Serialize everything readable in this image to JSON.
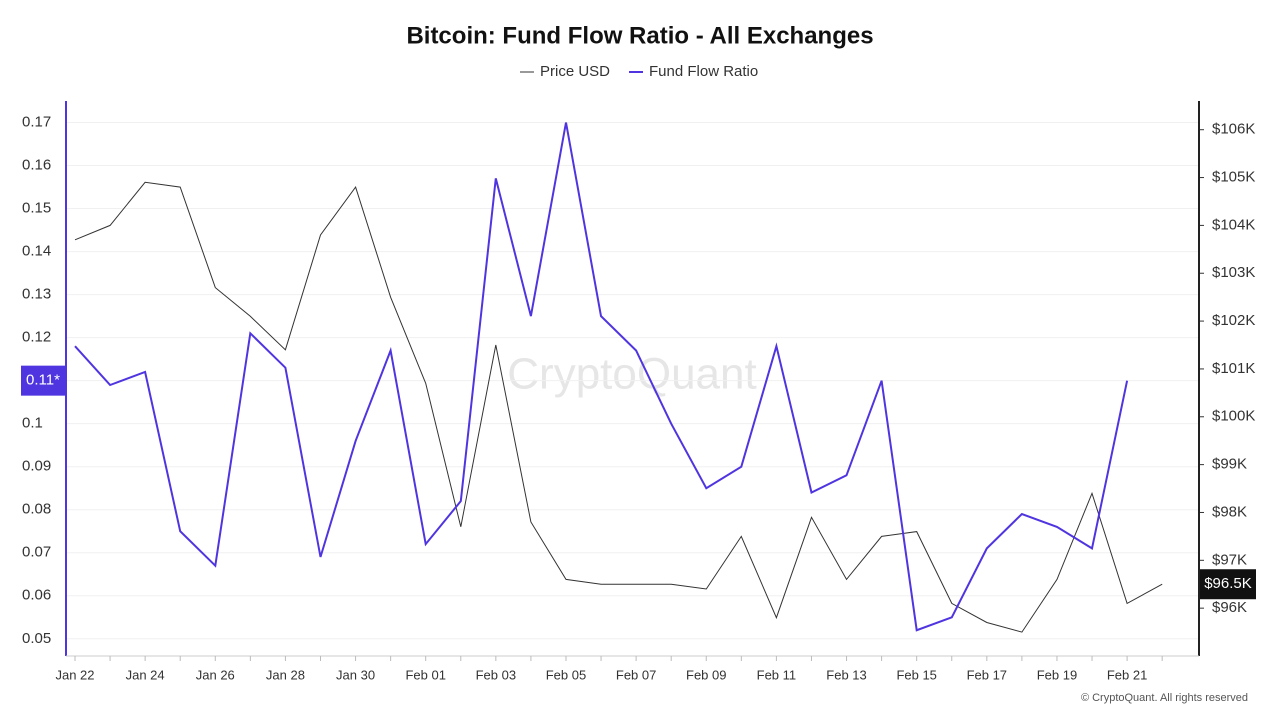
{
  "chart_data": {
    "type": "line",
    "title": "Bitcoin: Fund Flow Ratio - All Exchanges",
    "watermark": "CryptoQuant",
    "credit": "© CryptoQuant. All rights reserved",
    "categories": [
      "Jan 22",
      null,
      "Jan 24",
      null,
      "Jan 26",
      null,
      "Jan 28",
      null,
      "Jan 30",
      null,
      "Feb 01",
      null,
      "Feb 03",
      null,
      "Feb 05",
      null,
      "Feb 07",
      null,
      "Feb 09",
      null,
      "Feb 11",
      null,
      "Feb 13",
      null,
      "Feb 15",
      null,
      "Feb 17",
      null,
      "Feb 19",
      null,
      "Feb 21",
      null
    ],
    "series": [
      {
        "name": "Price USD",
        "color": "#333333",
        "axis": "y2",
        "values": [
          103700,
          104000,
          104900,
          104800,
          102700,
          102100,
          101400,
          103800,
          104800,
          102500,
          100700,
          97700,
          101500,
          97800,
          96600,
          96500,
          96500,
          96500,
          96400,
          97500,
          95800,
          97900,
          96600,
          97500,
          97600,
          96100,
          95700,
          95500,
          96600,
          98400,
          96100,
          96500
        ]
      },
      {
        "name": "Fund Flow Ratio",
        "color": "#4f35e0",
        "values": [
          0.118,
          0.109,
          0.112,
          0.075,
          0.067,
          0.121,
          0.113,
          0.069,
          0.096,
          0.117,
          0.072,
          0.082,
          0.157,
          0.125,
          0.17,
          0.125,
          0.117,
          0.1,
          0.085,
          0.09,
          0.118,
          0.084,
          0.088,
          0.11,
          0.052,
          0.055,
          0.071,
          0.079,
          0.076,
          0.071,
          0.11,
          null
        ]
      }
    ],
    "ylim": [
      0.046,
      0.175
    ],
    "yticks": [
      0.05,
      0.06,
      0.07,
      0.08,
      0.09,
      0.1,
      0.11,
      0.12,
      0.13,
      0.14,
      0.15,
      0.16,
      0.17
    ],
    "y2lim": [
      95000,
      106600
    ],
    "y2ticks": [
      {
        "value": 96000,
        "label": "$96K"
      },
      {
        "value": 97000,
        "label": "$97K"
      },
      {
        "value": 98000,
        "label": "$98K"
      },
      {
        "value": 99000,
        "label": "$99K"
      },
      {
        "value": 100000,
        "label": "$100K"
      },
      {
        "value": 101000,
        "label": "$101K"
      },
      {
        "value": 102000,
        "label": "$102K"
      },
      {
        "value": 103000,
        "label": "$103K"
      },
      {
        "value": 104000,
        "label": "$104K"
      },
      {
        "value": 105000,
        "label": "$105K"
      },
      {
        "value": 106000,
        "label": "$106K"
      }
    ],
    "y_marker": {
      "value": 0.11,
      "label": "0.11*"
    },
    "y2_marker": {
      "value": 96500,
      "label": "$96.5K"
    },
    "grid": true,
    "legend": "top"
  }
}
